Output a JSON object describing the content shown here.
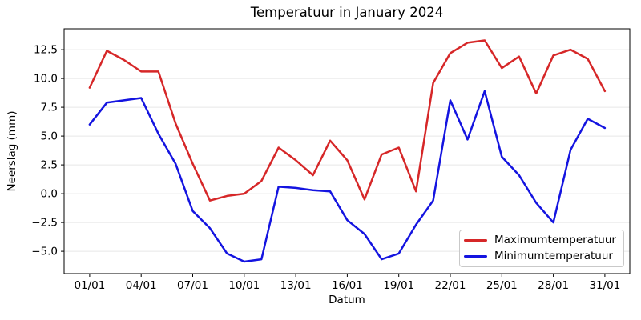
{
  "title": "Temperatuur in January 2024",
  "axes": {
    "xlabel": "Datum",
    "ylabel": "Neerslag (mm)"
  },
  "legend": {
    "position": "lower right",
    "items": [
      {
        "label": "Maximumtemperatuur",
        "color": "#d62728"
      },
      {
        "label": "Minimumtemperatuur",
        "color": "#1414e0"
      }
    ]
  },
  "colors": {
    "grid": "#e6e6e6",
    "spine": "#000000",
    "background": "#ffffff",
    "text": "#000000"
  },
  "chart_data": {
    "type": "line",
    "title": "Temperatuur in January 2024",
    "xlabel": "Datum",
    "ylabel": "Neerslag (mm)",
    "x": [
      1,
      2,
      3,
      4,
      5,
      6,
      7,
      8,
      9,
      10,
      11,
      12,
      13,
      14,
      15,
      16,
      17,
      18,
      19,
      20,
      21,
      22,
      23,
      24,
      25,
      26,
      27,
      28,
      29,
      30,
      31
    ],
    "x_dates": [
      "01/01",
      "02/01",
      "03/01",
      "04/01",
      "05/01",
      "06/01",
      "07/01",
      "08/01",
      "09/01",
      "10/01",
      "11/01",
      "12/01",
      "13/01",
      "14/01",
      "15/01",
      "16/01",
      "17/01",
      "18/01",
      "19/01",
      "20/01",
      "21/01",
      "22/01",
      "23/01",
      "24/01",
      "25/01",
      "26/01",
      "27/01",
      "28/01",
      "29/01",
      "30/01",
      "31/01"
    ],
    "series": [
      {
        "name": "Maximumtemperatuur",
        "color": "#d62728",
        "values": [
          9.2,
          12.4,
          11.6,
          10.6,
          10.6,
          6.1,
          2.6,
          -0.6,
          -0.2,
          0.0,
          1.1,
          4.0,
          2.9,
          1.6,
          4.6,
          2.9,
          -0.5,
          3.4,
          4.0,
          0.2,
          9.6,
          12.2,
          13.1,
          13.3,
          10.9,
          11.9,
          8.7,
          12.0,
          12.5,
          11.7,
          8.9
        ]
      },
      {
        "name": "Minimumtemperatuur",
        "color": "#1414e0",
        "values": [
          6.0,
          7.9,
          8.1,
          8.3,
          5.2,
          2.6,
          -1.5,
          -3.0,
          -5.2,
          -5.9,
          -5.7,
          0.6,
          0.5,
          0.3,
          0.2,
          -2.3,
          -3.5,
          -5.7,
          -5.2,
          -2.7,
          -0.6,
          8.1,
          4.7,
          8.9,
          3.2,
          1.6,
          -0.8,
          -2.5,
          3.8,
          6.5,
          5.7
        ]
      }
    ],
    "xticks": {
      "positions": [
        1,
        4,
        7,
        10,
        13,
        16,
        19,
        22,
        25,
        28,
        31
      ],
      "labels": [
        "01/01",
        "04/01",
        "07/01",
        "10/01",
        "13/01",
        "16/01",
        "19/01",
        "22/01",
        "25/01",
        "28/01",
        "31/01"
      ]
    },
    "yticks": [
      12.5,
      10.0,
      7.5,
      5.0,
      2.5,
      0.0,
      -2.5,
      -5.0
    ],
    "xlim": [
      -0.49,
      32.45
    ],
    "ylim": [
      -6.94,
      14.31
    ],
    "grid": "horizontal",
    "legend_position": "lower right",
    "line_width": 2.5
  }
}
